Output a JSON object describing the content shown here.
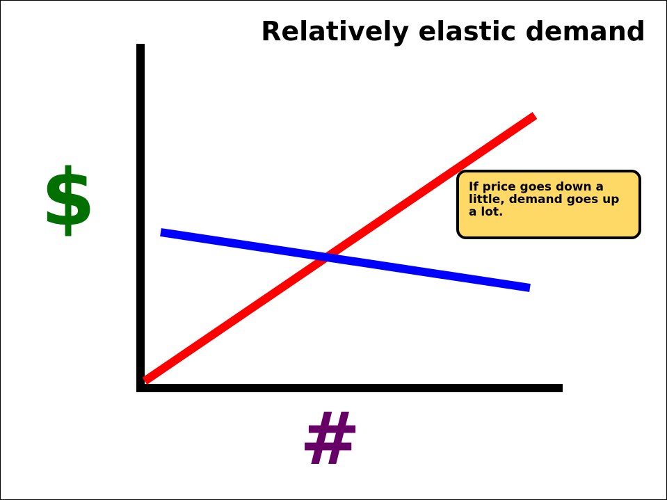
{
  "title": "Relatively elastic demand",
  "y_axis_symbol": "$",
  "x_axis_symbol": "#",
  "callout_text": "If price goes down a little, demand goes up a lot.",
  "colors": {
    "axes": "#000000",
    "supply_line": "#ff0000",
    "demand_line": "#0000ff",
    "dollar_sign": "#007000",
    "hash_sign": "#660066",
    "callout_fill": "#ffd966"
  },
  "lines": [
    {
      "name": "red-line"
    },
    {
      "name": "blue-line"
    }
  ]
}
